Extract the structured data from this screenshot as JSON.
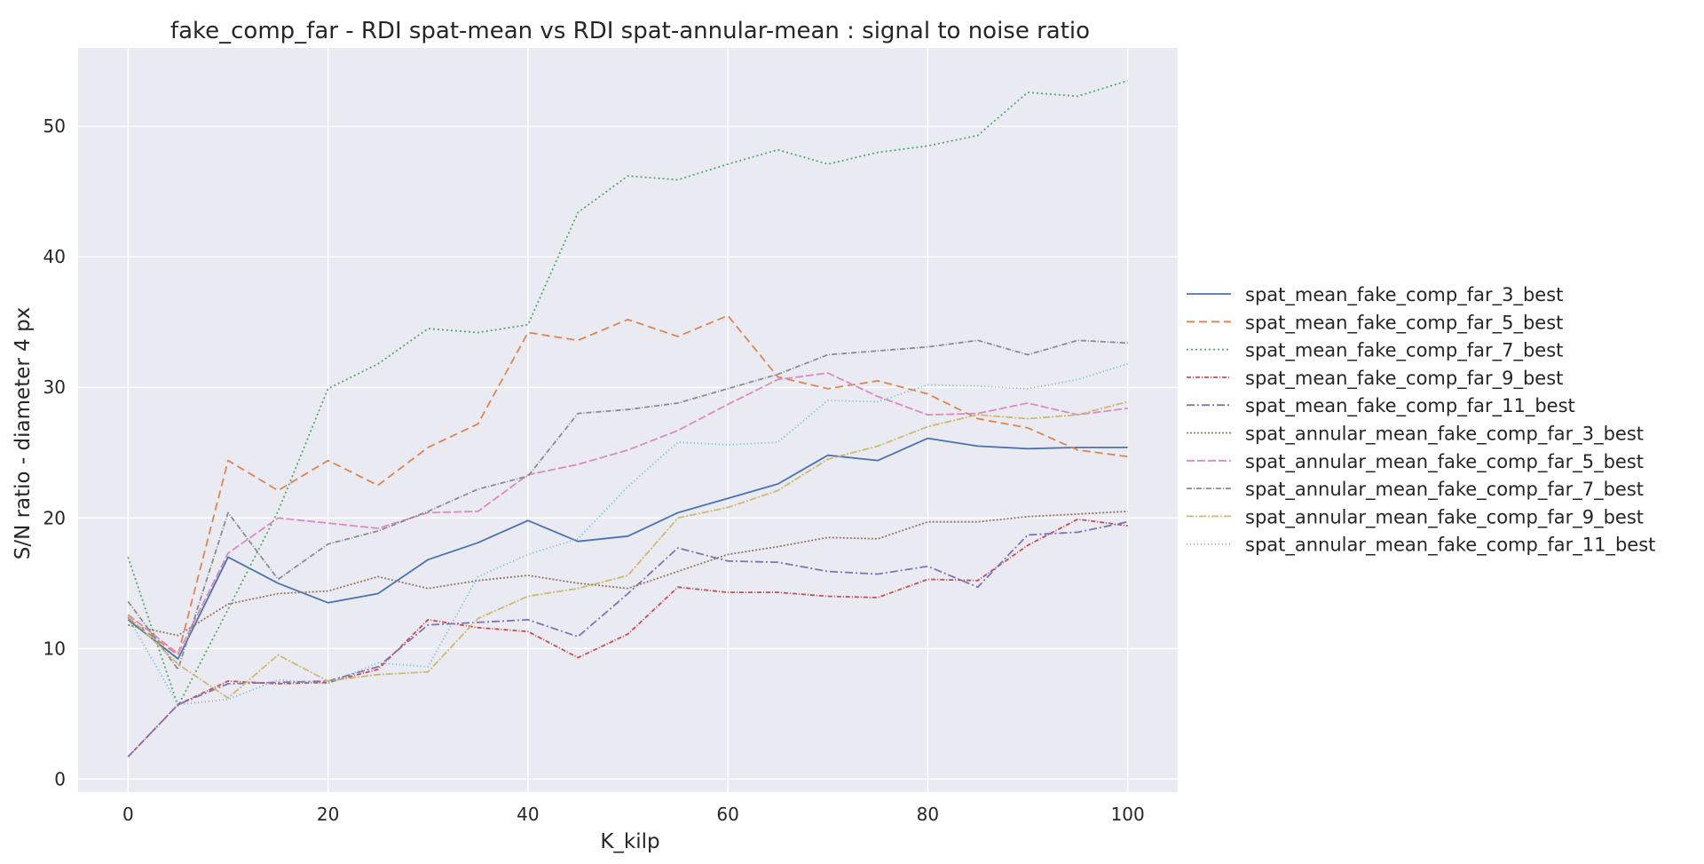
{
  "chart_data": {
    "type": "line",
    "title": "fake_comp_far - RDI spat-mean vs RDI spat-annular-mean : signal to noise ratio",
    "xlabel": "K_kilp",
    "ylabel": "S/N ratio - diameter 4 px",
    "xlim": [
      -5,
      105
    ],
    "ylim": [
      -1,
      56
    ],
    "xticks": [
      0,
      20,
      40,
      60,
      80,
      100
    ],
    "yticks": [
      0,
      10,
      20,
      30,
      40,
      50
    ],
    "grid": true,
    "legend_position": "right",
    "x": [
      0,
      5,
      10,
      15,
      20,
      25,
      30,
      35,
      40,
      45,
      50,
      55,
      60,
      65,
      70,
      75,
      80,
      85,
      90,
      95,
      100
    ],
    "series": [
      {
        "name": "spat_mean_fake_comp_far_3_best",
        "color": "#4c72b0",
        "dash": "",
        "values": [
          12.2,
          9.2,
          17.0,
          15.0,
          13.5,
          14.2,
          16.8,
          18.1,
          19.8,
          18.2,
          18.6,
          20.4,
          21.5,
          22.6,
          24.8,
          24.4,
          26.1,
          25.5,
          25.3,
          25.4,
          25.4
        ]
      },
      {
        "name": "spat_mean_fake_comp_far_5_best",
        "color": "#dd8452",
        "dash": "9,5",
        "values": [
          12.3,
          9.5,
          24.4,
          22.1,
          24.4,
          22.5,
          25.4,
          27.2,
          34.2,
          33.6,
          35.2,
          33.9,
          35.5,
          30.8,
          29.9,
          30.5,
          29.5,
          27.6,
          26.9,
          25.2,
          24.7
        ]
      },
      {
        "name": "spat_mean_fake_comp_far_7_best",
        "color": "#55a868",
        "dash": "2,3",
        "values": [
          17.0,
          5.6,
          13.0,
          20.5,
          29.9,
          31.8,
          34.5,
          34.2,
          34.8,
          43.4,
          46.2,
          45.9,
          47.1,
          48.2,
          47.1,
          48.0,
          48.5,
          49.3,
          52.6,
          52.3,
          53.5
        ]
      },
      {
        "name": "spat_mean_fake_comp_far_9_best",
        "color": "#c44e52",
        "dash": "5,2,1,2",
        "values": [
          1.7,
          5.7,
          7.5,
          7.3,
          7.4,
          8.4,
          12.2,
          11.6,
          11.3,
          9.3,
          11.1,
          14.7,
          14.3,
          14.3,
          14.0,
          13.9,
          15.3,
          15.2,
          17.9,
          19.9,
          19.4
        ]
      },
      {
        "name": "spat_mean_fake_comp_far_11_best",
        "color": "#8172b3",
        "dash": "9,3,2,3",
        "values": [
          1.7,
          5.7,
          7.3,
          7.4,
          7.5,
          8.6,
          11.8,
          12.0,
          12.2,
          10.9,
          14.2,
          17.7,
          16.7,
          16.6,
          15.9,
          15.7,
          16.3,
          14.7,
          18.7,
          18.9,
          19.7
        ]
      },
      {
        "name": "spat_annular_mean_fake_comp_far_3_best",
        "color": "#937860",
        "dash": "2,2",
        "values": [
          11.8,
          11.0,
          13.4,
          14.2,
          14.4,
          15.5,
          14.6,
          15.2,
          15.6,
          15.0,
          14.6,
          15.9,
          17.2,
          17.8,
          18.5,
          18.4,
          19.7,
          19.7,
          20.1,
          20.3,
          20.5
        ]
      },
      {
        "name": "spat_annular_mean_fake_comp_far_5_best",
        "color": "#da8bc3",
        "dash": "9,3,9,3",
        "values": [
          12.6,
          9.6,
          17.3,
          20.0,
          19.6,
          19.2,
          20.4,
          20.5,
          23.3,
          24.1,
          25.2,
          26.7,
          28.7,
          30.6,
          31.1,
          29.3,
          27.9,
          28.0,
          28.8,
          27.9,
          28.4
        ]
      },
      {
        "name": "spat_annular_mean_fake_comp_far_7_best",
        "color": "#8c8c8c",
        "dash": "6,2,1,2",
        "values": [
          13.6,
          8.4,
          20.4,
          15.3,
          18.0,
          19.0,
          20.5,
          22.2,
          23.2,
          28.0,
          28.3,
          28.8,
          29.9,
          31.0,
          32.5,
          32.8,
          33.1,
          33.6,
          32.5,
          33.6,
          33.4
        ]
      },
      {
        "name": "spat_annular_mean_fake_comp_far_9_best",
        "color": "#ccb974",
        "dash": "8,2,2,2",
        "values": [
          12.5,
          8.8,
          6.2,
          9.5,
          7.5,
          8.0,
          8.2,
          12.3,
          14.0,
          14.6,
          15.6,
          20.0,
          20.8,
          22.1,
          24.5,
          25.5,
          27.0,
          27.9,
          27.6,
          27.9,
          28.9
        ]
      },
      {
        "name": "spat_annular_mean_fake_comp_far_11_best",
        "color": "#64b5cd",
        "dash": "1,3",
        "values": [
          12.4,
          5.7,
          6.1,
          7.6,
          7.3,
          8.9,
          8.6,
          15.5,
          17.2,
          18.4,
          22.4,
          25.8,
          25.6,
          25.8,
          29.0,
          28.9,
          30.2,
          30.1,
          29.9,
          30.6,
          31.8
        ]
      }
    ]
  }
}
